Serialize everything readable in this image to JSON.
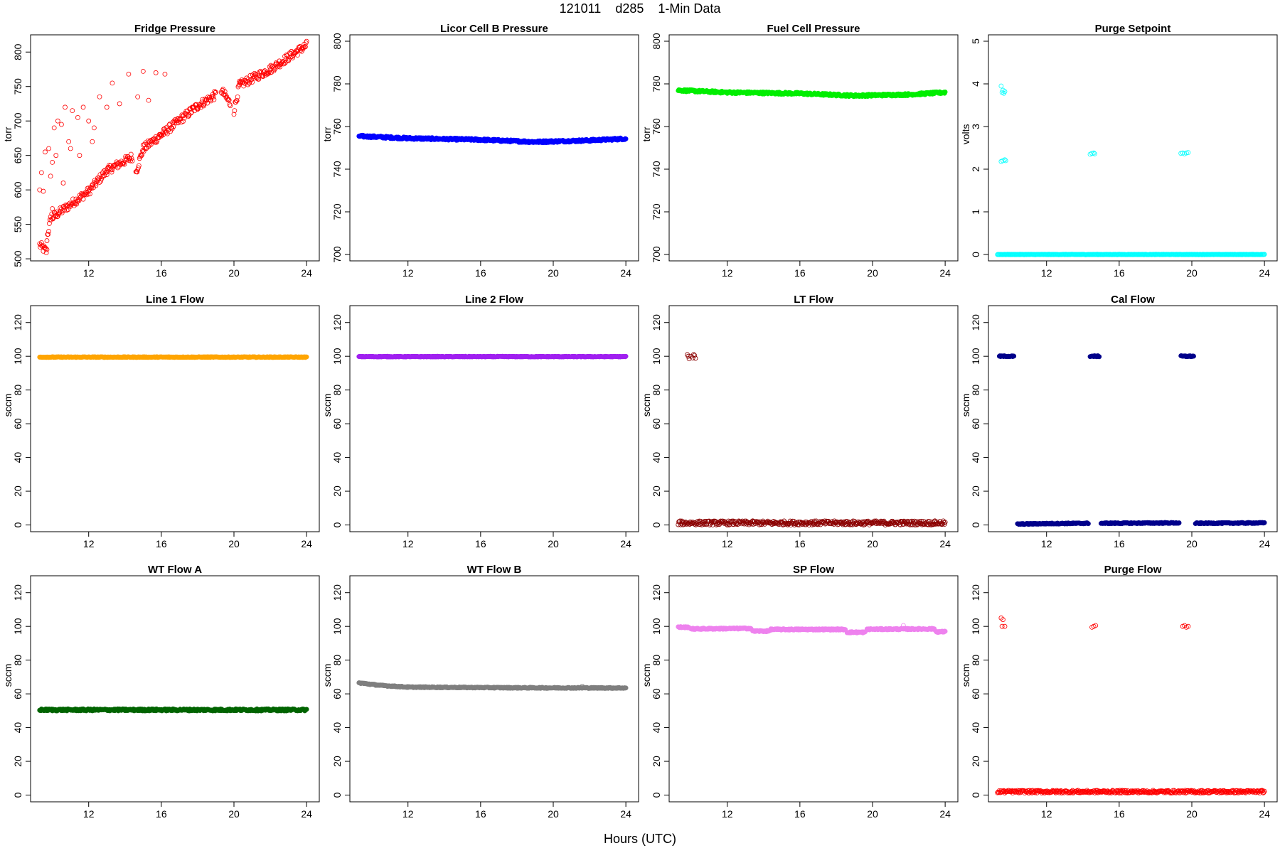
{
  "title": "121011    d285    1-Min Data",
  "x_axis_label": "Hours (UTC)",
  "chart_data": [
    {
      "type": "scatter",
      "title": "Fridge Pressure",
      "ylabel": "torr",
      "color": "#ff0000",
      "filled": false,
      "ylim": [
        497,
        825
      ],
      "yticks": [
        500,
        550,
        600,
        650,
        700,
        750,
        800
      ],
      "xlim": [
        8.8,
        24.7
      ],
      "xticks": [
        12,
        16,
        20,
        24
      ],
      "series": [
        {
          "segments": [
            [
              9.3,
              520,
              9.7,
              510
            ],
            [
              9.7,
              530,
              10.0,
              570
            ],
            [
              10.0,
              560,
              12.0,
              598
            ],
            [
              12.0,
              598,
              13.0,
              628
            ],
            [
              13.0,
              628,
              14.4,
              648
            ],
            [
              14.6,
              625,
              15.0,
              660
            ],
            [
              15.0,
              660,
              16.0,
              680
            ],
            [
              16.0,
              680,
              18.0,
              722
            ],
            [
              18.0,
              722,
              19.0,
              738
            ],
            [
              19.3,
              745,
              19.8,
              725
            ],
            [
              20.0,
              715,
              20.3,
              752
            ],
            [
              20.3,
              752,
              22.0,
              775
            ],
            [
              22.0,
              775,
              24.0,
              810
            ]
          ],
          "noise": 6,
          "extra": [
            [
              9.4,
              625
            ],
            [
              9.6,
              655
            ],
            [
              9.8,
              660
            ],
            [
              10.0,
              640
            ],
            [
              10.1,
              690
            ],
            [
              10.3,
              700
            ],
            [
              10.5,
              695
            ],
            [
              10.7,
              720
            ],
            [
              10.9,
              670
            ],
            [
              11.1,
              715
            ],
            [
              11.4,
              705
            ],
            [
              11.7,
              720
            ],
            [
              12.0,
              700
            ],
            [
              12.3,
              690
            ],
            [
              12.6,
              735
            ],
            [
              13.0,
              720
            ],
            [
              13.3,
              755
            ],
            [
              13.7,
              725
            ],
            [
              14.2,
              768
            ],
            [
              14.7,
              735
            ],
            [
              15.0,
              772
            ],
            [
              15.3,
              730
            ],
            [
              15.7,
              770
            ],
            [
              16.2,
              768
            ],
            [
              9.3,
              600
            ],
            [
              9.5,
              598
            ],
            [
              9.9,
              620
            ],
            [
              10.2,
              650
            ],
            [
              10.6,
              610
            ],
            [
              11.0,
              660
            ],
            [
              11.5,
              650
            ],
            [
              12.2,
              670
            ]
          ]
        }
      ]
    },
    {
      "type": "scatter",
      "title": "Licor Cell B Pressure",
      "ylabel": "torr",
      "color": "#0000ff",
      "filled": true,
      "ylim": [
        697,
        803
      ],
      "yticks": [
        700,
        720,
        740,
        760,
        780,
        800
      ],
      "xlim": [
        8.8,
        24.7
      ],
      "xticks": [
        12,
        16,
        20,
        24
      ],
      "series": [
        {
          "segments": [
            [
              9.3,
              755.5,
              12.0,
              754.5
            ],
            [
              12.0,
              754.5,
              16.0,
              753.8
            ],
            [
              16.0,
              753.8,
              19.0,
              752.8
            ],
            [
              19.0,
              752.8,
              22.0,
              753.5
            ],
            [
              22.0,
              753.5,
              24.0,
              754.3
            ]
          ],
          "noise": 0.5,
          "extra": []
        }
      ]
    },
    {
      "type": "scatter",
      "title": "Fuel Cell Pressure",
      "ylabel": "torr",
      "color": "#00ee00",
      "filled": true,
      "ylim": [
        697,
        803
      ],
      "yticks": [
        700,
        720,
        740,
        760,
        780,
        800
      ],
      "xlim": [
        8.8,
        24.7
      ],
      "xticks": [
        12,
        16,
        20,
        24
      ],
      "series": [
        {
          "segments": [
            [
              9.3,
              777,
              12.0,
              776
            ],
            [
              12.0,
              776,
              16.0,
              775.5
            ],
            [
              16.0,
              775.5,
              19.0,
              774.5
            ],
            [
              19.0,
              774.5,
              22.0,
              775
            ],
            [
              22.0,
              775,
              24.0,
              776
            ]
          ],
          "noise": 0.5,
          "extra": []
        }
      ]
    },
    {
      "type": "scatter",
      "title": "Purge Setpoint",
      "ylabel": "volts",
      "color": "#00ffff",
      "filled": false,
      "ylim": [
        -0.15,
        5.15
      ],
      "yticks": [
        0,
        1,
        2,
        3,
        4,
        5
      ],
      "xlim": [
        8.8,
        24.7
      ],
      "xticks": [
        12,
        16,
        20,
        24
      ],
      "series": [
        {
          "segments": [
            [
              9.3,
              0,
              24.0,
              0
            ]
          ],
          "noise": 0.005,
          "extra": [
            [
              9.5,
              3.95
            ],
            [
              9.55,
              3.8
            ],
            [
              9.6,
              3.85
            ],
            [
              9.65,
              3.78
            ],
            [
              9.7,
              3.82
            ],
            [
              9.5,
              2.18
            ],
            [
              9.6,
              2.2
            ],
            [
              9.7,
              2.22
            ],
            [
              9.75,
              2.2
            ],
            [
              14.4,
              2.35
            ],
            [
              14.5,
              2.37
            ],
            [
              14.6,
              2.38
            ],
            [
              14.65,
              2.36
            ],
            [
              19.4,
              2.37
            ],
            [
              19.5,
              2.38
            ],
            [
              19.6,
              2.36
            ],
            [
              19.7,
              2.38
            ],
            [
              19.8,
              2.39
            ]
          ]
        }
      ]
    },
    {
      "type": "scatter",
      "title": "Line 1 Flow",
      "ylabel": "sccm",
      "color": "#ffa500",
      "filled": true,
      "ylim": [
        -4,
        130
      ],
      "yticks": [
        0,
        20,
        40,
        60,
        80,
        100,
        120
      ],
      "xlim": [
        8.8,
        24.7
      ],
      "xticks": [
        12,
        16,
        20,
        24
      ],
      "series": [
        {
          "segments": [
            [
              9.3,
              99.5,
              24.0,
              99.5
            ]
          ],
          "noise": 0.2,
          "extra": []
        }
      ]
    },
    {
      "type": "scatter",
      "title": "Line 2 Flow",
      "ylabel": "sccm",
      "color": "#a020f0",
      "filled": true,
      "ylim": [
        -4,
        130
      ],
      "yticks": [
        0,
        20,
        40,
        60,
        80,
        100,
        120
      ],
      "xlim": [
        8.8,
        24.7
      ],
      "xticks": [
        12,
        16,
        20,
        24
      ],
      "series": [
        {
          "segments": [
            [
              9.3,
              99.8,
              24.0,
              99.8
            ]
          ],
          "noise": 0.2,
          "extra": []
        }
      ]
    },
    {
      "type": "scatter",
      "title": "LT Flow",
      "ylabel": "sccm",
      "color": "#8b0000",
      "filled": false,
      "ylim": [
        -4,
        130
      ],
      "yticks": [
        0,
        20,
        40,
        60,
        80,
        100,
        120
      ],
      "xlim": [
        8.8,
        24.7
      ],
      "xticks": [
        12,
        16,
        20,
        24
      ],
      "series": [
        {
          "segments": [
            [
              9.3,
              1.2,
              24.0,
              1.2
            ]
          ],
          "noise": 1.2,
          "extra": [
            [
              9.8,
              101
            ],
            [
              9.9,
              98.5
            ],
            [
              10.0,
              100
            ],
            [
              10.1,
              99
            ],
            [
              10.2,
              100.5
            ],
            [
              10.25,
              98.8
            ],
            [
              9.85,
              100
            ],
            [
              10.15,
              101
            ]
          ]
        }
      ]
    },
    {
      "type": "scatter",
      "title": "Cal Flow",
      "ylabel": "sccm",
      "color": "#00008b",
      "filled": true,
      "ylim": [
        -4,
        130
      ],
      "yticks": [
        0,
        20,
        40,
        60,
        80,
        100,
        120
      ],
      "xlim": [
        8.8,
        24.7
      ],
      "xticks": [
        12,
        16,
        20,
        24
      ],
      "series": [
        {
          "segments": [
            [
              9.4,
              100,
              10.2,
              100
            ],
            [
              10.4,
              0.5,
              12.0,
              0.8
            ],
            [
              12.0,
              0.8,
              14.3,
              1.0
            ],
            [
              14.4,
              100,
              14.9,
              100
            ],
            [
              15.0,
              1.0,
              19.3,
              1.2
            ],
            [
              19.4,
              100,
              20.1,
              100
            ],
            [
              20.2,
              1.0,
              24.0,
              1.2
            ]
          ],
          "noise": 0.3,
          "extra": []
        }
      ]
    },
    {
      "type": "scatter",
      "title": "WT Flow A",
      "ylabel": "sccm",
      "color": "#006400",
      "filled": true,
      "ylim": [
        -4,
        130
      ],
      "yticks": [
        0,
        20,
        40,
        60,
        80,
        100,
        120
      ],
      "xlim": [
        8.8,
        24.7
      ],
      "xticks": [
        12,
        16,
        20,
        24
      ],
      "series": [
        {
          "segments": [
            [
              9.3,
              50.5,
              24.0,
              50.5
            ]
          ],
          "noise": 0.6,
          "extra": []
        }
      ]
    },
    {
      "type": "scatter",
      "title": "WT Flow B",
      "ylabel": "sccm",
      "color": "#7f7f7f",
      "filled": true,
      "ylim": [
        -4,
        130
      ],
      "yticks": [
        0,
        20,
        40,
        60,
        80,
        100,
        120
      ],
      "xlim": [
        8.8,
        24.7
      ],
      "xticks": [
        12,
        16,
        20,
        24
      ],
      "series": [
        {
          "segments": [
            [
              9.3,
              66.5,
              10.5,
              65
            ],
            [
              10.5,
              65,
              12.0,
              64
            ],
            [
              12.0,
              64,
              18.0,
              63.6
            ],
            [
              18.0,
              63.6,
              24.0,
              63.5
            ]
          ],
          "noise": 0.3,
          "extra": [
            [
              21.6,
              64.5
            ]
          ]
        }
      ]
    },
    {
      "type": "scatter",
      "title": "SP Flow",
      "ylabel": "sccm",
      "color": "#ee82ee",
      "filled": true,
      "ylim": [
        -4,
        130
      ],
      "yticks": [
        0,
        20,
        40,
        60,
        80,
        100,
        120
      ],
      "xlim": [
        8.8,
        24.7
      ],
      "xticks": [
        12,
        16,
        20,
        24
      ],
      "series": [
        {
          "segments": [
            [
              9.3,
              99.5,
              9.9,
              99.5
            ],
            [
              10.0,
              98.5,
              13.3,
              98.8
            ],
            [
              13.4,
              97.2,
              14.3,
              97.2
            ],
            [
              14.4,
              98.2,
              18.5,
              98.2
            ],
            [
              18.6,
              96.5,
              19.6,
              96.5
            ],
            [
              19.7,
              98.3,
              23.4,
              98.5
            ],
            [
              23.5,
              96.8,
              24.0,
              96.8
            ]
          ],
          "noise": 0.4,
          "extra": [
            [
              21.7,
              100.5
            ]
          ]
        }
      ]
    },
    {
      "type": "scatter",
      "title": "Purge Flow",
      "ylabel": "sccm",
      "color": "#ff0000",
      "filled": false,
      "ylim": [
        -4,
        130
      ],
      "yticks": [
        0,
        20,
        40,
        60,
        80,
        100,
        120
      ],
      "xlim": [
        8.8,
        24.7
      ],
      "xticks": [
        12,
        16,
        20,
        24
      ],
      "series": [
        {
          "segments": [
            [
              9.3,
              2.0,
              24.0,
              2.0
            ]
          ],
          "noise": 0.8,
          "extra": [
            [
              9.5,
              105
            ],
            [
              9.6,
              104
            ],
            [
              9.55,
              100
            ],
            [
              9.7,
              100
            ],
            [
              14.5,
              99.5
            ],
            [
              14.6,
              100
            ],
            [
              14.7,
              100.5
            ],
            [
              19.5,
              100
            ],
            [
              19.6,
              100.5
            ],
            [
              19.7,
              99.5
            ],
            [
              19.8,
              100
            ]
          ]
        }
      ]
    }
  ]
}
